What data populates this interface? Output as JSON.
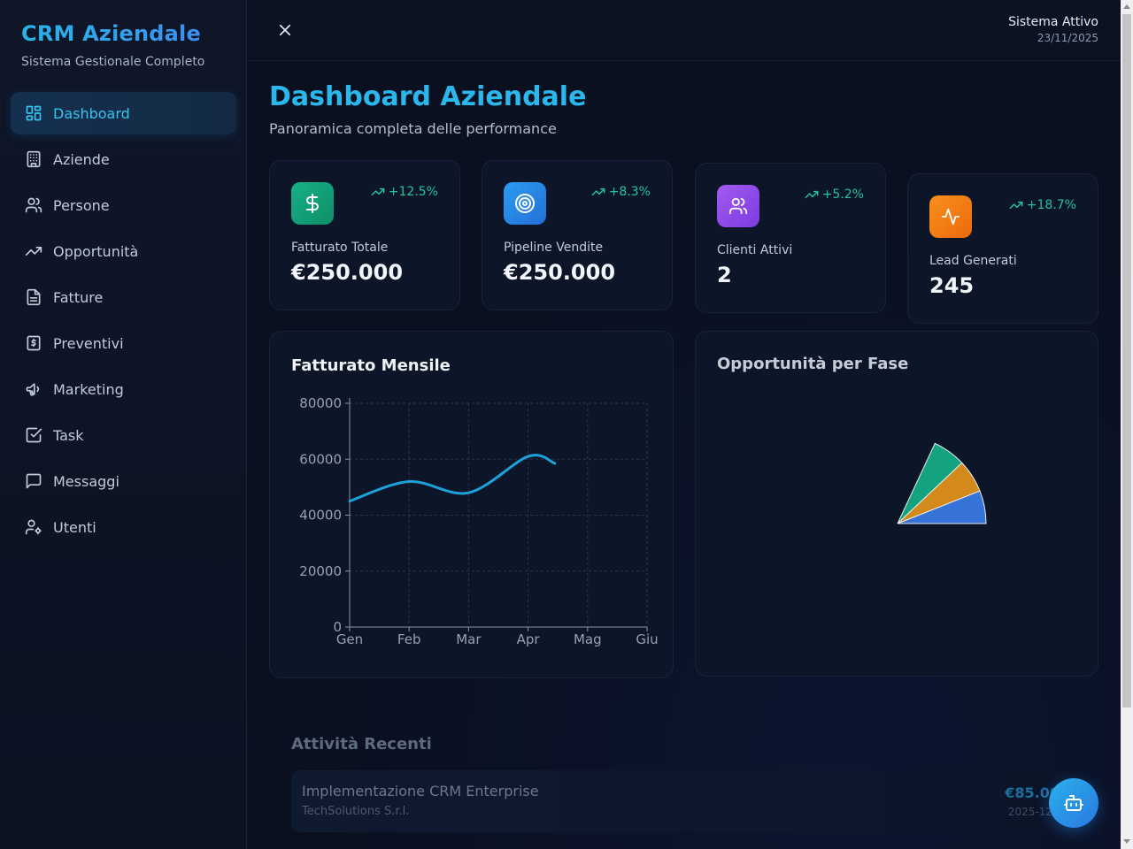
{
  "brand": {
    "title": "CRM Aziendale",
    "subtitle": "Sistema Gestionale Completo"
  },
  "sidebar": {
    "items": [
      {
        "label": "Dashboard",
        "icon": "dashboard-icon",
        "active": true
      },
      {
        "label": "Aziende",
        "icon": "building-icon"
      },
      {
        "label": "Persone",
        "icon": "users-icon"
      },
      {
        "label": "Opportunità",
        "icon": "trending-up-icon"
      },
      {
        "label": "Fatture",
        "icon": "file-icon"
      },
      {
        "label": "Preventivi",
        "icon": "receipt-icon"
      },
      {
        "label": "Marketing",
        "icon": "megaphone-icon"
      },
      {
        "label": "Task",
        "icon": "check-square-icon"
      },
      {
        "label": "Messaggi",
        "icon": "message-icon"
      },
      {
        "label": "Utenti",
        "icon": "user-cog-icon"
      }
    ]
  },
  "topbar": {
    "status_title": "Sistema Attivo",
    "status_date": "23/11/2025"
  },
  "page": {
    "title": "Dashboard Aziendale",
    "subtitle": "Panoramica completa delle performance"
  },
  "stats": [
    {
      "label": "Fatturato Totale",
      "value": "€250.000",
      "trend": "+12.5%",
      "icon": "dollar-icon",
      "color": "#16a37a"
    },
    {
      "label": "Pipeline Vendite",
      "value": "€250.000",
      "trend": "+8.3%",
      "icon": "target-icon",
      "color": "#2a86e6"
    },
    {
      "label": "Clienti Attivi",
      "value": "2",
      "trend": "+5.2%",
      "icon": "users-icon",
      "color": "#9148e6"
    },
    {
      "label": "Lead Generati",
      "value": "245",
      "trend": "+18.7%",
      "icon": "activity-icon",
      "color": "#f07a12"
    }
  ],
  "revenue_panel": {
    "title": "Fatturato Mensile"
  },
  "opportunity_panel": {
    "title": "Opportunità per Fase"
  },
  "chart_data": [
    {
      "type": "line",
      "title": "Fatturato Mensile",
      "categories": [
        "Gen",
        "Feb",
        "Mar",
        "Apr",
        "Mag",
        "Giu"
      ],
      "x": [
        0,
        1,
        2,
        3,
        3.45
      ],
      "values": [
        45000,
        52000,
        48000,
        61000,
        58500
      ],
      "ylim": [
        0,
        80000
      ],
      "yticks": [
        0,
        20000,
        40000,
        60000,
        80000
      ],
      "grid": true,
      "color": "#1ea0d8"
    },
    {
      "type": "pie",
      "title": "Opportunità per Fase",
      "slices": [
        {
          "value": 1,
          "color": "#3573d6"
        },
        {
          "value": 1,
          "color": "#d48a1a"
        },
        {
          "value": 1,
          "color": "#14a37e"
        }
      ]
    }
  ],
  "activity": {
    "title": "Attività Recenti",
    "items": [
      {
        "name": "Implementazione CRM Enterprise",
        "company": "TechSolutions S.r.l.",
        "amount": "€85.00",
        "date": "2025-12"
      }
    ]
  }
}
